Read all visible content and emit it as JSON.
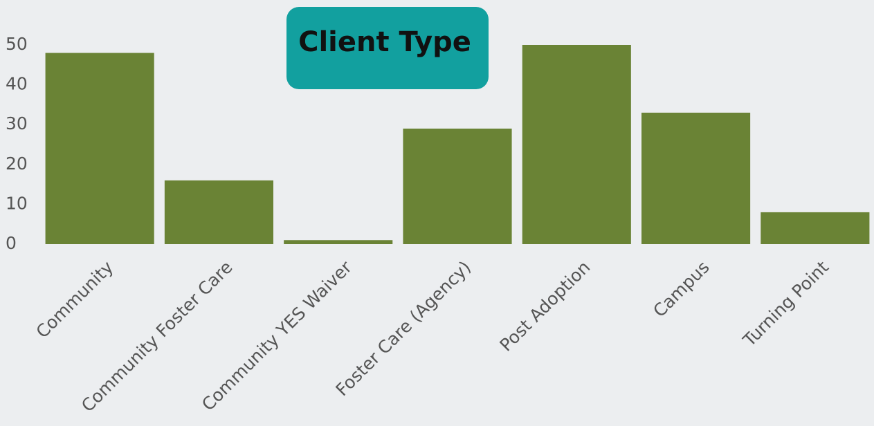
{
  "chart_data": {
    "type": "bar",
    "title": "Client Type",
    "categories": [
      "Community",
      "Community Foster Care",
      "Community YES Waiver",
      "Foster Care (Agency)",
      "Post Adoption",
      "Campus",
      "Turning Point"
    ],
    "values": [
      48,
      16,
      1,
      29,
      50,
      33,
      8
    ],
    "color": "#6a8335",
    "ylim": [
      0,
      50
    ],
    "yticks": [
      0,
      10,
      20,
      30,
      40,
      50
    ],
    "grid": false
  }
}
